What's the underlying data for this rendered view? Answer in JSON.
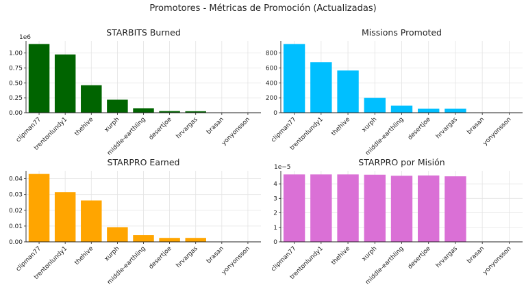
{
  "figure": {
    "title": "Promotores - Métricas de Promoción (Actualizadas)"
  },
  "chart_data": [
    {
      "type": "bar",
      "title": "STARBITS Burned",
      "xlabel": "",
      "ylabel": "",
      "offset_label": "1e6",
      "categories": [
        "clipman77",
        "trentonlundy1",
        "thehive",
        "xurph",
        "middle-earthling",
        "desertjoe",
        "hrvargas",
        "brasan",
        "yonyonsson"
      ],
      "values": [
        1.15,
        0.975,
        0.46,
        0.22,
        0.075,
        0.028,
        0.025,
        0,
        0
      ],
      "ylim": [
        0,
        1.2
      ],
      "yticks": [
        0.0,
        0.25,
        0.5,
        0.75,
        1.0
      ],
      "ytick_labels": [
        "0.00",
        "0.25",
        "0.50",
        "0.75",
        "1.00"
      ],
      "grid": true,
      "color": "#006400"
    },
    {
      "type": "bar",
      "title": "Missions Promoted",
      "xlabel": "",
      "ylabel": "",
      "categories": [
        "clipman77",
        "trentonlundy1",
        "thehive",
        "xurph",
        "middle-earthling",
        "desertjoe",
        "hrvargas",
        "brasan",
        "yonyonsson"
      ],
      "values": [
        920,
        675,
        565,
        200,
        95,
        55,
        55,
        0,
        0
      ],
      "ylim": [
        0,
        960
      ],
      "yticks": [
        0,
        200,
        400,
        600,
        800
      ],
      "ytick_labels": [
        "0",
        "200",
        "400",
        "600",
        "800"
      ],
      "grid": true,
      "color": "#00BFFF"
    },
    {
      "type": "bar",
      "title": "STARPRO Earned",
      "xlabel": "",
      "ylabel": "",
      "categories": [
        "clipman77",
        "trentonlundy1",
        "thehive",
        "xurph",
        "middle-earthling",
        "desertjoe",
        "hrvargas",
        "brasan",
        "yonyonsson"
      ],
      "values": [
        0.043,
        0.0315,
        0.0262,
        0.0093,
        0.0043,
        0.0025,
        0.0025,
        0,
        0
      ],
      "ylim": [
        0,
        0.045
      ],
      "yticks": [
        0.0,
        0.01,
        0.02,
        0.03,
        0.04
      ],
      "ytick_labels": [
        "0.00",
        "0.01",
        "0.02",
        "0.03",
        "0.04"
      ],
      "grid": true,
      "color": "#FFA500"
    },
    {
      "type": "bar",
      "title": "STARPRO por Misión",
      "xlabel": "",
      "ylabel": "",
      "offset_label": "1e−5",
      "categories": [
        "clipman77",
        "trentonlundy1",
        "thehive",
        "xurph",
        "middle-earthling",
        "desertjoe",
        "hrvargas",
        "brasan",
        "yonyonsson"
      ],
      "values": [
        4.65,
        4.65,
        4.65,
        4.63,
        4.56,
        4.58,
        4.52,
        0,
        0
      ],
      "ylim": [
        0,
        4.9
      ],
      "yticks": [
        0,
        1,
        2,
        3,
        4
      ],
      "ytick_labels": [
        "0",
        "1",
        "2",
        "3",
        "4"
      ],
      "grid": true,
      "color": "#DA70D6"
    }
  ]
}
